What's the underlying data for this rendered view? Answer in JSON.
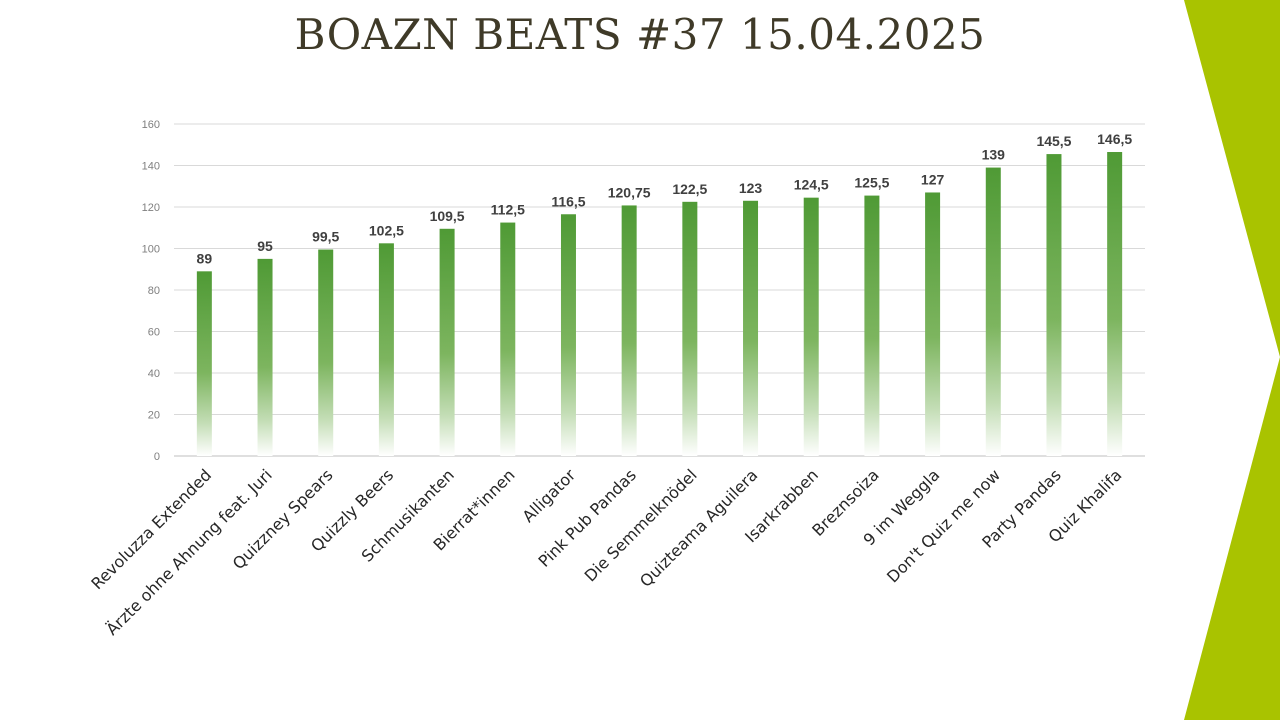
{
  "title": "BOAZN BEATS #37 15.04.2025",
  "colors": {
    "bar": "#4f9a35",
    "accent": "#a9c300",
    "title": "#3f3a28",
    "grid": "#d9d9d9"
  },
  "chart_data": {
    "type": "bar",
    "title": "BOAZN BEATS #37 15.04.2025",
    "xlabel": "",
    "ylabel": "",
    "ylim": [
      0,
      160
    ],
    "yticks": [
      0,
      20,
      40,
      60,
      80,
      100,
      120,
      140,
      160
    ],
    "grid": true,
    "categories": [
      "Revoluzza Extended",
      "Ärzte ohne Ahnung feat. Juri",
      "Quizzney Spears",
      "Quizzly Beers",
      "Schmusikanten",
      "Bierrat*innen",
      "Alligator",
      "Pink Pub Pandas",
      "Die Semmelknödel",
      "Quizteama Aguilera",
      "Isarkrabben",
      "Breznsoiza",
      "9 im Weggla",
      "Don't Quiz me now",
      "Party Pandas",
      "Quiz Khalifa"
    ],
    "values": [
      89,
      95,
      99.5,
      102.5,
      109.5,
      112.5,
      116.5,
      120.75,
      122.5,
      123,
      124.5,
      125.5,
      127,
      139,
      145.5,
      146.5
    ],
    "value_labels": [
      "89",
      "95",
      "99,5",
      "102,5",
      "109,5",
      "112,5",
      "116,5",
      "120,75",
      "122,5",
      "123",
      "124,5",
      "125,5",
      "127",
      "139",
      "145,5",
      "146,5"
    ]
  }
}
